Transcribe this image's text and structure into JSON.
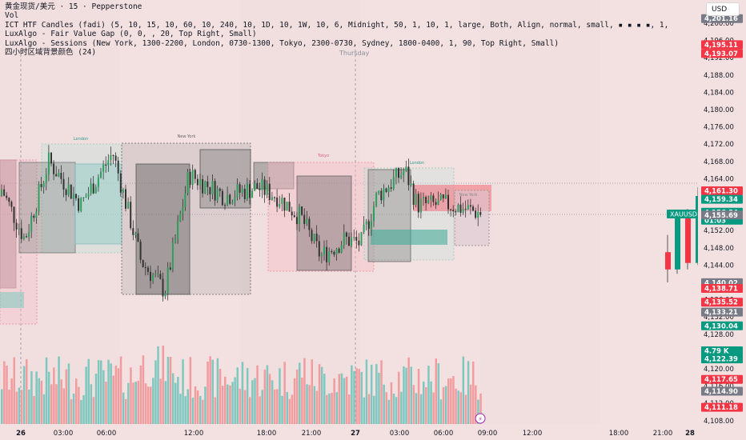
{
  "currency_button": "USD",
  "legend": {
    "line1": "黄金现货/美元 · 15 · Pepperstone",
    "line2": "Vol",
    "line3": "ICT HTF Candles (fadi) (5, 10, 15, 10, 60, 10, 240, 10, 1D, 10, 1W, 10, 6, Midnight, 50, 1, 10, 1, large, Both, Align, normal, small, ▪ ▪ ▪ ▪, 1,",
    "line4": "LuxAlgo - Fair Value Gap (0, 0, , 20, Top Right, Small)",
    "line5": "LuxAlgo - Sessions (New York, 1300-2200, London, 0730-1300, Tokyo, 2300-0730, Sydney, 1800-0400, 1, 90, Top Right, Small)",
    "line6": "四小时区域背景颜色 (24)"
  },
  "day_header": "Thursday",
  "session_labels": {
    "london1": "London",
    "newyork1": "New York",
    "tokyo": "Tokyo",
    "london2": "London",
    "newyork2": "New York"
  },
  "symbol_badge": "XAUUSD",
  "price_axis": {
    "ticks": [
      "4,200.00",
      "4,196.00",
      "4,192.00",
      "4,188.00",
      "4,184.00",
      "4,180.00",
      "4,176.00",
      "4,172.00",
      "4,168.00",
      "4,164.00",
      "4,160.00",
      "4,156.00",
      "4,152.00",
      "4,148.00",
      "4,144.00",
      "4,140.00",
      "4,136.00",
      "4,132.00",
      "4,128.00",
      "4,124.00",
      "4,120.00",
      "4,116.00",
      "4,112.00",
      "4,108.00"
    ],
    "labels": [
      {
        "text": "4,201.16",
        "bg": "#787b86"
      },
      {
        "text": "4,195.11",
        "bg": "#f23645"
      },
      {
        "text": "4,193.07",
        "bg": "#f23645"
      },
      {
        "text": "4,161.30",
        "bg": "#f23645"
      },
      {
        "text": "4,159.34",
        "bg": "#089981"
      },
      {
        "text": "4,156.34",
        "bg": "#089981"
      },
      {
        "text": "01:03",
        "bg": "#089981"
      },
      {
        "text": "4,155.69",
        "bg": "#787b86"
      },
      {
        "text": "4,140.02",
        "bg": "#787b86"
      },
      {
        "text": "4,138.71",
        "bg": "#f23645"
      },
      {
        "text": "4,135.52",
        "bg": "#f23645"
      },
      {
        "text": "4,133.21",
        "bg": "#787b86"
      },
      {
        "text": "4,130.04",
        "bg": "#089981"
      },
      {
        "text": "4.79 K",
        "bg": "#089981"
      },
      {
        "text": "4,122.39",
        "bg": "#089981"
      },
      {
        "text": "4,117.65",
        "bg": "#f23645"
      },
      {
        "text": "4,114.90",
        "bg": "#787b86"
      },
      {
        "text": "4,111.18",
        "bg": "#f23645"
      }
    ]
  },
  "time_axis": [
    "26",
    "03:00",
    "06:00",
    "12:00",
    "18:00",
    "21:00",
    "27",
    "03:00",
    "06:00",
    "09:00",
    "12:00",
    "18:00",
    "21:00",
    "28"
  ],
  "colors": {
    "up": "#089981",
    "down": "#f23645",
    "upVol": "#7fc8c0",
    "downVol": "#f19c9f"
  },
  "htf_candles": [
    {
      "open": 4147.0,
      "high": 4151.0,
      "low": 4140.0,
      "close": 4143.0
    },
    {
      "open": 4143.0,
      "high": 4156.0,
      "low": 4142.0,
      "close": 4155.0
    },
    {
      "open": 4155.0,
      "high": 4157.0,
      "low": 4143.0,
      "close": 4144.5
    },
    {
      "open": 4144.5,
      "high": 4162.0,
      "low": 4144.0,
      "close": 4160.0
    }
  ]
}
